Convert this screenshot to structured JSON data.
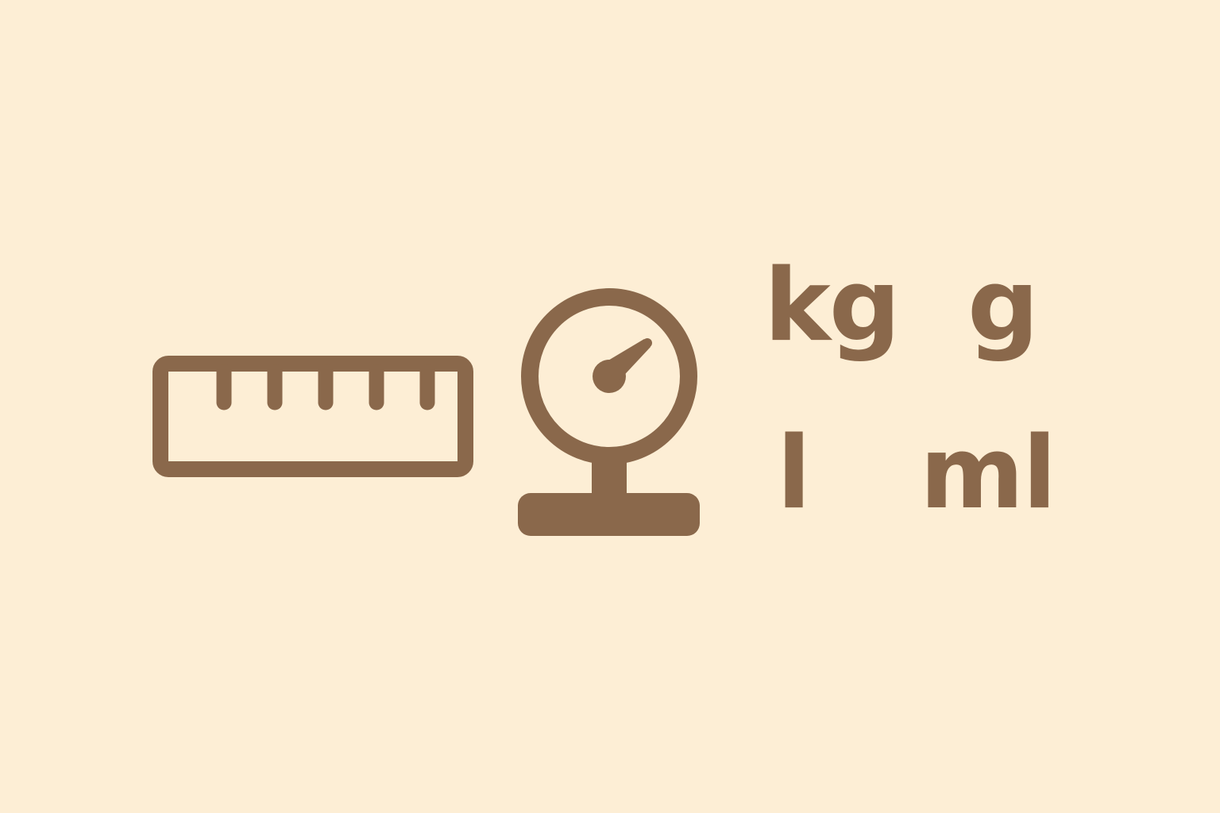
{
  "colors": {
    "background": "#FDEED5",
    "icon": "#8A684B"
  },
  "icons": {
    "ruler": "ruler-icon",
    "scale": "scale-icon"
  },
  "units": {
    "kg": "kg",
    "g": "g",
    "l": "l",
    "ml": "ml"
  }
}
